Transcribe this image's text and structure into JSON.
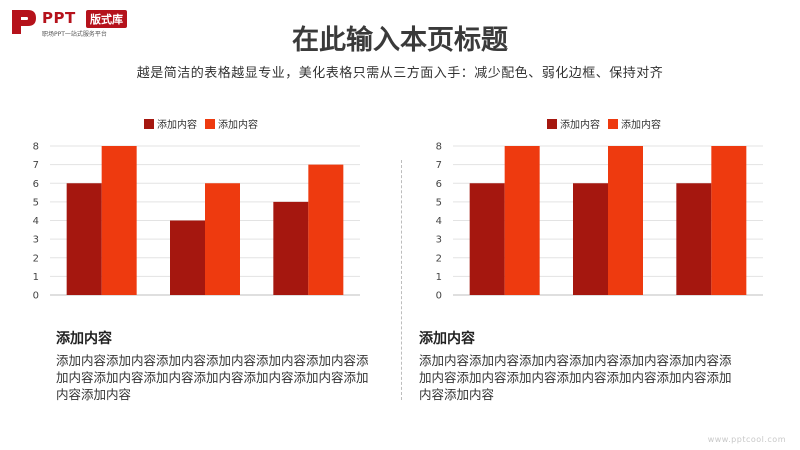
{
  "logo": {
    "ppt": "PPT",
    "badge": "版式库",
    "tagline": "职场PPT一站式服务平台"
  },
  "title": "在此输入本页标题",
  "subtitle": "越是简洁的表格越显专业，美化表格只需从三方面入手：减少配色、弱化边框、保持对齐",
  "colors": {
    "series1": "#a5170f",
    "series2": "#ee3a0f",
    "accent": "#b5121b"
  },
  "chart_data": [
    {
      "type": "bar",
      "categories": [
        "",
        "",
        ""
      ],
      "series": [
        {
          "name": "添加内容",
          "values": [
            6,
            4,
            5
          ]
        },
        {
          "name": "添加内容",
          "values": [
            8,
            6,
            7
          ]
        }
      ],
      "ylim": [
        0,
        8
      ],
      "yticks": [
        "0",
        "1",
        "2",
        "3",
        "4",
        "5",
        "6",
        "7",
        "8"
      ],
      "grid": true,
      "legend_position": "top"
    },
    {
      "type": "bar",
      "categories": [
        "",
        "",
        ""
      ],
      "series": [
        {
          "name": "添加内容",
          "values": [
            6,
            6,
            6
          ]
        },
        {
          "name": "添加内容",
          "values": [
            8,
            8,
            8
          ]
        }
      ],
      "ylim": [
        0,
        8
      ],
      "yticks": [
        "0",
        "1",
        "2",
        "3",
        "4",
        "5",
        "6",
        "7",
        "8"
      ],
      "grid": true,
      "legend_position": "top"
    }
  ],
  "cards": [
    {
      "heading": "添加内容",
      "body": "添加内容添加内容添加内容添加内容添加内容添加内容添加内容添加内容添加内容添加内容添加内容添加内容添加内容添加内容"
    },
    {
      "heading": "添加内容",
      "body": "添加内容添加内容添加内容添加内容添加内容添加内容添加内容添加内容添加内容添加内容添加内容添加内容添加内容添加内容"
    }
  ],
  "watermark": "www.pptcool.com"
}
